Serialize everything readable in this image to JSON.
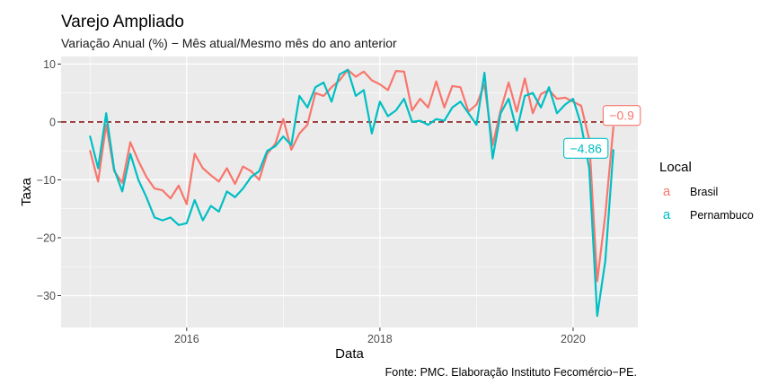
{
  "chart_data": {
    "type": "line",
    "title": "Varejo Ampliado",
    "subtitle": "Variação Anual (%) − Mês atual/Mesmo mês do ano anterior",
    "xlabel": "Data",
    "ylabel": "Taxa",
    "caption": "Fonte: PMC. Elaboração Instituto Fecomércio−PE.",
    "x_ticks": [
      "2016",
      "2018",
      "2020"
    ],
    "x_tick_values": [
      2016.0,
      2018.0,
      2020.0
    ],
    "y_ticks": [
      10,
      0,
      -10,
      -20,
      -30
    ],
    "xlim": [
      2014.7,
      2020.67
    ],
    "ylim": [
      -35.5,
      11.3
    ],
    "reference_line": {
      "y": 0,
      "style": "dashed",
      "color": "#8B1A1A"
    },
    "grid": true,
    "legend": {
      "title": "Local",
      "position": "right",
      "entries": [
        {
          "glyph": "a",
          "label": "Brasil",
          "color": "#F8766D"
        },
        {
          "glyph": "a",
          "label": "Pernambuco",
          "color": "#00BFC4"
        }
      ]
    },
    "x": [
      "2015-01",
      "2015-02",
      "2015-03",
      "2015-04",
      "2015-05",
      "2015-06",
      "2015-07",
      "2015-08",
      "2015-09",
      "2015-10",
      "2015-11",
      "2015-12",
      "2016-01",
      "2016-02",
      "2016-03",
      "2016-04",
      "2016-05",
      "2016-06",
      "2016-07",
      "2016-08",
      "2016-09",
      "2016-10",
      "2016-11",
      "2016-12",
      "2017-01",
      "2017-02",
      "2017-03",
      "2017-04",
      "2017-05",
      "2017-06",
      "2017-07",
      "2017-08",
      "2017-09",
      "2017-10",
      "2017-11",
      "2017-12",
      "2018-01",
      "2018-02",
      "2018-03",
      "2018-04",
      "2018-05",
      "2018-06",
      "2018-07",
      "2018-08",
      "2018-09",
      "2018-10",
      "2018-11",
      "2018-12",
      "2019-01",
      "2019-02",
      "2019-03",
      "2019-04",
      "2019-05",
      "2019-06",
      "2019-07",
      "2019-08",
      "2019-09",
      "2019-10",
      "2019-11",
      "2019-12",
      "2020-01",
      "2020-02",
      "2020-03",
      "2020-04",
      "2020-05",
      "2020-06"
    ],
    "x_numeric": [
      2015.0,
      2015.083,
      2015.167,
      2015.25,
      2015.333,
      2015.417,
      2015.5,
      2015.583,
      2015.667,
      2015.75,
      2015.833,
      2015.917,
      2016.0,
      2016.083,
      2016.167,
      2016.25,
      2016.333,
      2016.417,
      2016.5,
      2016.583,
      2016.667,
      2016.75,
      2016.833,
      2016.917,
      2017.0,
      2017.083,
      2017.167,
      2017.25,
      2017.333,
      2017.417,
      2017.5,
      2017.583,
      2017.667,
      2017.75,
      2017.833,
      2017.917,
      2018.0,
      2018.083,
      2018.167,
      2018.25,
      2018.333,
      2018.417,
      2018.5,
      2018.583,
      2018.667,
      2018.75,
      2018.833,
      2018.917,
      2019.0,
      2019.083,
      2019.167,
      2019.25,
      2019.333,
      2019.417,
      2019.5,
      2019.583,
      2019.667,
      2019.75,
      2019.833,
      2019.917,
      2020.0,
      2020.083,
      2020.167,
      2020.25,
      2020.333,
      2020.417
    ],
    "series": [
      {
        "name": "Brasil",
        "color": "#F8766D",
        "values": [
          -5.0,
          -10.3,
          -0.5,
          -8.5,
          -10.5,
          -3.5,
          -6.7,
          -9.5,
          -11.5,
          -11.8,
          -13.2,
          -11.0,
          -14.2,
          -5.5,
          -8.0,
          -9.2,
          -10.3,
          -8.0,
          -10.7,
          -7.7,
          -8.5,
          -10.0,
          -5.5,
          -3.8,
          0.5,
          -4.8,
          -2.0,
          -0.5,
          5.0,
          4.5,
          6.0,
          7.2,
          9.0,
          7.8,
          8.7,
          7.2,
          6.5,
          5.5,
          8.8,
          8.7,
          2.0,
          4.0,
          2.5,
          7.0,
          2.5,
          6.2,
          6.0,
          1.8,
          3.0,
          6.5,
          -4.0,
          2.0,
          6.8,
          1.8,
          7.5,
          1.5,
          4.8,
          5.5,
          4.0,
          4.2,
          3.5,
          2.8,
          -3.0,
          -27.5,
          -16.0,
          -0.9
        ]
      },
      {
        "name": "Pernambuco",
        "color": "#00BFC4",
        "values": [
          -2.5,
          -8.0,
          1.5,
          -8.2,
          -12.0,
          -5.5,
          -10.0,
          -13.0,
          -16.5,
          -17.0,
          -16.5,
          -17.8,
          -17.5,
          -13.5,
          -17.0,
          -14.5,
          -15.5,
          -12.0,
          -13.0,
          -11.5,
          -9.5,
          -8.5,
          -5.0,
          -4.2,
          -2.5,
          -4.0,
          4.5,
          2.5,
          6.0,
          6.8,
          3.5,
          8.2,
          9.0,
          4.5,
          5.5,
          -2.0,
          3.5,
          1.0,
          2.0,
          4.0,
          0.0,
          0.2,
          -0.5,
          0.5,
          0.2,
          2.5,
          3.5,
          1.5,
          -0.5,
          8.5,
          -6.3,
          1.5,
          4.0,
          -1.5,
          4.5,
          5.0,
          2.5,
          6.0,
          1.5,
          3.0,
          4.0,
          -0.5,
          -8.0,
          -33.5,
          -24.0,
          -4.86
        ]
      }
    ],
    "annotations": [
      {
        "series": "Brasil",
        "x": "2020-06",
        "y": -0.9,
        "text": "−0.9"
      },
      {
        "series": "Pernambuco",
        "x": "2020-06",
        "y": -4.86,
        "text": "−4.86"
      }
    ]
  }
}
